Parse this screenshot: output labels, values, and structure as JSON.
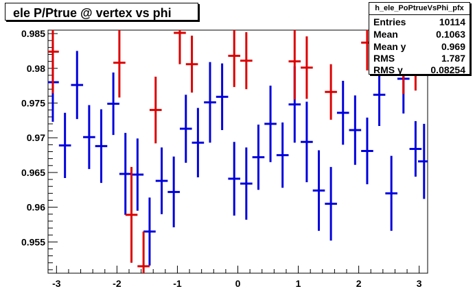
{
  "title": "ele P/Ptrue @ vertex vs phi",
  "stats": {
    "name": "h_ele_PoPtrueVsPhi_pfx",
    "rows": [
      {
        "key": "Entries",
        "value": "10114"
      },
      {
        "key": "Mean",
        "value": "0.1063"
      },
      {
        "key": "Mean y",
        "value": "0.969"
      },
      {
        "key": "RMS",
        "value": "1.787"
      },
      {
        "key": "RMS y",
        "value": "0.08254"
      }
    ]
  },
  "chart_data": {
    "type": "scatter",
    "title": "ele P/Ptrue @ vertex vs phi",
    "xlabel": "",
    "ylabel": "",
    "xlim": [
      -3.14,
      3.14
    ],
    "ylim": [
      0.9505,
      0.9855
    ],
    "x_ticks": [
      "-3",
      "-2",
      "-1",
      "0",
      "1",
      "2",
      "3"
    ],
    "y_ticks": [
      "0.955",
      "0.96",
      "0.965",
      "0.97",
      "0.975",
      "0.98",
      "0.985"
    ],
    "grid": false,
    "colors": {
      "blue": "#0000dd",
      "red": "#dd0000"
    },
    "series": [
      {
        "color": "#0000dd",
        "points": [
          {
            "x": -3.061,
            "y": 0.978,
            "err": 0.0057
          },
          {
            "x": -2.86,
            "y": 0.9689,
            "err": 0.0047
          },
          {
            "x": -2.66,
            "y": 0.9776,
            "err": 0.0049
          },
          {
            "x": -2.46,
            "y": 0.9701,
            "err": 0.0046
          },
          {
            "x": -2.26,
            "y": 0.9688,
            "err": 0.0053
          },
          {
            "x": -2.06,
            "y": 0.9749,
            "err": 0.0045
          },
          {
            "x": -1.86,
            "y": 0.9648,
            "err": 0.0059
          },
          {
            "x": -1.66,
            "y": 0.9647,
            "err": 0.0052
          },
          {
            "x": -1.46,
            "y": 0.9565,
            "err": 0.0049
          },
          {
            "x": -1.26,
            "y": 0.9638,
            "err": 0.0048
          },
          {
            "x": -1.06,
            "y": 0.9622,
            "err": 0.0051
          },
          {
            "x": -0.86,
            "y": 0.9713,
            "err": 0.0049
          },
          {
            "x": -0.66,
            "y": 0.9693,
            "err": 0.005
          },
          {
            "x": -0.46,
            "y": 0.9751,
            "err": 0.0058
          },
          {
            "x": -0.26,
            "y": 0.9759,
            "err": 0.0048
          },
          {
            "x": -0.06,
            "y": 0.9641,
            "err": 0.0053
          },
          {
            "x": 0.14,
            "y": 0.9634,
            "err": 0.0052
          },
          {
            "x": 0.34,
            "y": 0.9672,
            "err": 0.0047
          },
          {
            "x": 0.54,
            "y": 0.972,
            "err": 0.0055
          },
          {
            "x": 0.74,
            "y": 0.9675,
            "err": 0.0047
          },
          {
            "x": 0.94,
            "y": 0.9748,
            "err": 0.0055
          },
          {
            "x": 1.14,
            "y": 0.9694,
            "err": 0.0058
          },
          {
            "x": 1.34,
            "y": 0.9624,
            "err": 0.0058
          },
          {
            "x": 1.54,
            "y": 0.9605,
            "err": 0.0053
          },
          {
            "x": 1.74,
            "y": 0.9736,
            "err": 0.0046
          },
          {
            "x": 1.94,
            "y": 0.9711,
            "err": 0.005
          },
          {
            "x": 2.14,
            "y": 0.9681,
            "err": 0.0048
          },
          {
            "x": 2.34,
            "y": 0.9762,
            "err": 0.0045
          },
          {
            "x": 2.54,
            "y": 0.962,
            "err": 0.0054
          },
          {
            "x": 2.74,
            "y": 0.9785,
            "err": 0.005
          },
          {
            "x": 2.94,
            "y": 0.9684,
            "err": 0.004
          },
          {
            "x": 3.081,
            "y": 0.9666,
            "err": 0.0054
          }
        ]
      },
      {
        "color": "#dd0000",
        "points": [
          {
            "x": -3.061,
            "y": 0.9824,
            "err": 0.006
          },
          {
            "x": -1.96,
            "y": 0.9808,
            "err": 0.005
          },
          {
            "x": -1.76,
            "y": 0.9589,
            "err": 0.0069
          },
          {
            "x": -1.56,
            "y": 0.9515,
            "err": 0.005
          },
          {
            "x": -1.36,
            "y": 0.974,
            "err": 0.0048
          },
          {
            "x": -0.96,
            "y": 0.9851,
            "err": 0.0045
          },
          {
            "x": -0.76,
            "y": 0.9806,
            "err": 0.0041
          },
          {
            "x": -0.06,
            "y": 0.9818,
            "err": 0.0045
          },
          {
            "x": 0.14,
            "y": 0.9811,
            "err": 0.0041
          },
          {
            "x": 0.94,
            "y": 0.981,
            "err": 0.0055
          },
          {
            "x": 1.14,
            "y": 0.9801,
            "err": 0.0045
          },
          {
            "x": 1.54,
            "y": 0.9766,
            "err": 0.004
          },
          {
            "x": 2.14,
            "y": 0.9837,
            "err": 0.004
          },
          {
            "x": 2.74,
            "y": 0.9808,
            "err": 0.0045
          },
          {
            "x": 2.94,
            "y": 0.9798,
            "err": 0.003
          }
        ]
      }
    ]
  }
}
